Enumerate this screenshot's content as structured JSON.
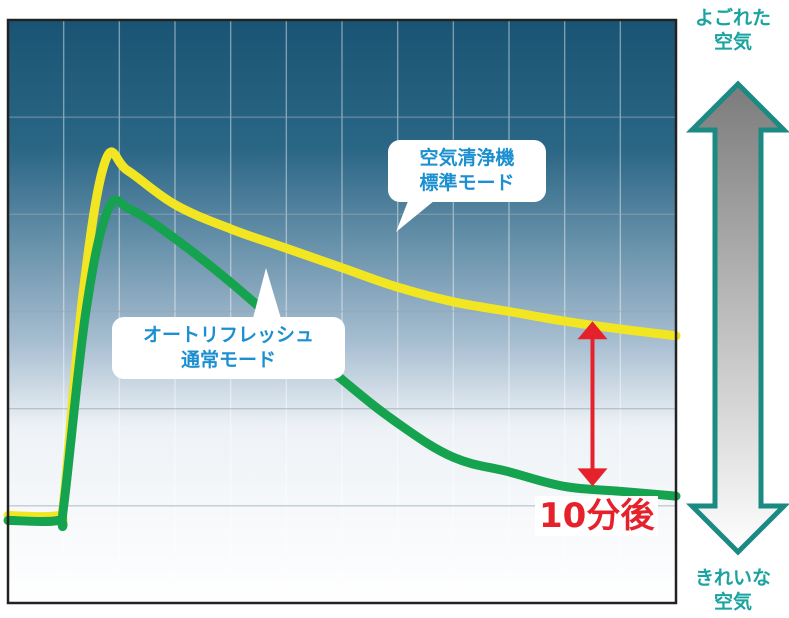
{
  "chart_data": {
    "type": "line",
    "title": "",
    "xlabel": "",
    "ylabel": "",
    "grid": true,
    "y_axis": {
      "top_label": "よごれた\n空気",
      "bottom_label": "きれいな\n空気"
    },
    "xlim": [
      0,
      12
    ],
    "ylim": [
      0,
      6
    ],
    "series": [
      {
        "name": "空気清浄機\n標準モード",
        "color": "#f2e622",
        "points": [
          [
            0,
            0.9
          ],
          [
            0.9,
            0.9
          ],
          [
            1.0,
            1.05
          ],
          [
            1.35,
            3.2
          ],
          [
            1.75,
            4.55
          ],
          [
            2.15,
            4.45
          ],
          [
            3.0,
            4.1
          ],
          [
            4.0,
            3.85
          ],
          [
            5.0,
            3.65
          ],
          [
            6.0,
            3.45
          ],
          [
            7.0,
            3.25
          ],
          [
            8.0,
            3.1
          ],
          [
            9.0,
            3.0
          ],
          [
            10.0,
            2.9
          ],
          [
            11.0,
            2.82
          ],
          [
            12.0,
            2.75
          ]
        ]
      },
      {
        "name": "オートリフレッシュ\n通常モード",
        "color": "#16a34f",
        "points": [
          [
            0,
            0.85
          ],
          [
            0.9,
            0.85
          ],
          [
            1.0,
            1.0
          ],
          [
            1.4,
            3.0
          ],
          [
            1.8,
            4.05
          ],
          [
            2.2,
            4.05
          ],
          [
            3.0,
            3.75
          ],
          [
            4.0,
            3.3
          ],
          [
            5.0,
            2.8
          ],
          [
            6.0,
            2.3
          ],
          [
            7.0,
            1.85
          ],
          [
            8.0,
            1.5
          ],
          [
            9.0,
            1.35
          ],
          [
            10.0,
            1.2
          ],
          [
            11.0,
            1.15
          ],
          [
            12.0,
            1.1
          ]
        ]
      }
    ],
    "annotations": [
      {
        "x": 10.5,
        "y_from": 1.2,
        "y_to": 2.9,
        "color": "#e5222b",
        "label": "10分後"
      }
    ]
  }
}
